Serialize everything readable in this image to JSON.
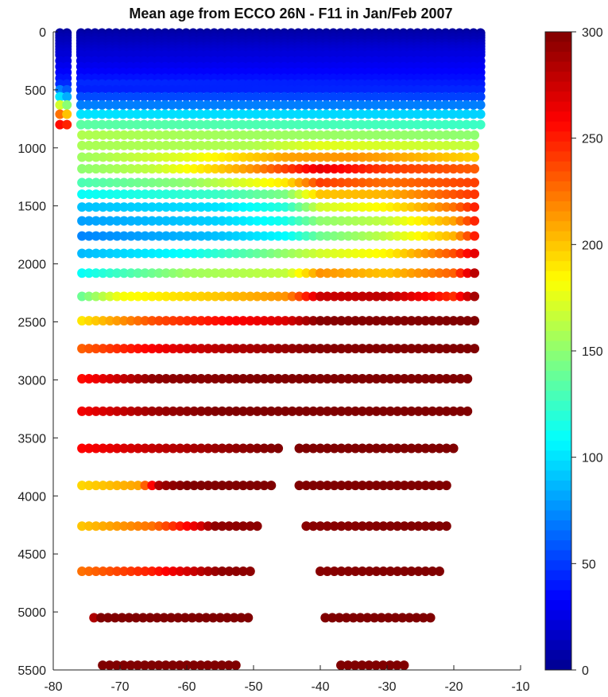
{
  "chart_data": {
    "type": "scatter",
    "title": "Mean age from ECCO 26N - F11 in Jan/Feb 2007",
    "xlabel": "",
    "ylabel": "",
    "xlim": [
      -80,
      -10
    ],
    "ylim": [
      5500,
      0
    ],
    "y_reversed": true,
    "grid": false,
    "x_ticks": [
      -80,
      -70,
      -60,
      -50,
      -40,
      -30,
      -20,
      -10
    ],
    "y_ticks": [
      0,
      500,
      1000,
      1500,
      2000,
      2500,
      3000,
      3500,
      4000,
      4500,
      5000,
      5500
    ],
    "colorbar": {
      "position": "right",
      "colormap": "jet",
      "range": [
        0,
        300
      ],
      "ticks": [
        0,
        50,
        100,
        150,
        200,
        250,
        300
      ]
    },
    "series": [
      {
        "depth": 10,
        "x_range": [
          -79,
          -15
        ],
        "gap": [
          -77.3,
          -76.3
        ],
        "age": [
          [
            -79,
            5
          ],
          [
            -15,
            5
          ]
        ]
      },
      {
        "depth": 30,
        "x_range": [
          -79,
          -15
        ],
        "gap": [
          -77.3,
          -76.3
        ],
        "age": [
          [
            -79,
            8
          ],
          [
            -15,
            8
          ]
        ]
      },
      {
        "depth": 50,
        "x_range": [
          -79,
          -15
        ],
        "gap": [
          -77.3,
          -76.3
        ],
        "age": [
          [
            -79,
            10
          ],
          [
            -15,
            10
          ]
        ]
      },
      {
        "depth": 75,
        "x_range": [
          -79,
          -15
        ],
        "gap": [
          -77.3,
          -76.3
        ],
        "age": [
          [
            -79,
            12
          ],
          [
            -15,
            12
          ]
        ]
      },
      {
        "depth": 100,
        "x_range": [
          -79,
          -15
        ],
        "gap": [
          -77.3,
          -76.3
        ],
        "age": [
          [
            -79,
            13
          ],
          [
            -15,
            15
          ]
        ]
      },
      {
        "depth": 125,
        "x_range": [
          -79,
          -15
        ],
        "gap": [
          -77.3,
          -76.3
        ],
        "age": [
          [
            -79,
            15
          ],
          [
            -15,
            18
          ]
        ]
      },
      {
        "depth": 150,
        "x_range": [
          -79,
          -15
        ],
        "gap": [
          -77.3,
          -76.3
        ],
        "age": [
          [
            -79,
            17
          ],
          [
            -15,
            20
          ]
        ]
      },
      {
        "depth": 175,
        "x_range": [
          -79,
          -15
        ],
        "gap": [
          -77.3,
          -76.3
        ],
        "age": [
          [
            -79,
            19
          ],
          [
            -15,
            22
          ]
        ]
      },
      {
        "depth": 200,
        "x_range": [
          -79,
          -15.2
        ],
        "gap": [
          -77.3,
          -76.3
        ],
        "age": [
          [
            -79,
            21
          ],
          [
            -15.2,
            24
          ]
        ]
      },
      {
        "depth": 250,
        "x_range": [
          -79,
          -15.6
        ],
        "gap": [
          -77.3,
          -76.3
        ],
        "age": [
          [
            -79,
            24
          ],
          [
            -15.6,
            27
          ]
        ]
      },
      {
        "depth": 300,
        "x_range": [
          -79,
          -16
        ],
        "gap": [
          -77.3,
          -76.3
        ],
        "age": [
          [
            -79,
            28
          ],
          [
            -16,
            30
          ]
        ]
      },
      {
        "depth": 350,
        "x_range": [
          -79,
          -16
        ],
        "gap": [
          -77.3,
          -76.3
        ],
        "age": [
          [
            -79,
            32
          ],
          [
            -16,
            33
          ]
        ]
      },
      {
        "depth": 400,
        "x_range": [
          -79,
          -16
        ],
        "gap": [
          -77.3,
          -76.3
        ],
        "age": [
          [
            -79,
            38
          ],
          [
            -16,
            36
          ]
        ]
      },
      {
        "depth": 450,
        "x_range": [
          -79,
          -16
        ],
        "gap": [
          -77.3,
          -76.3
        ],
        "age": [
          [
            -79,
            45
          ],
          [
            -16,
            40
          ]
        ]
      },
      {
        "depth": 500,
        "x_range": [
          -79,
          -16
        ],
        "gap": [
          -77.3,
          -76.3
        ],
        "age": [
          [
            -79,
            70
          ],
          [
            -76,
            42
          ],
          [
            -16,
            44
          ]
        ]
      },
      {
        "depth": 560,
        "x_range": [
          -79,
          -16
        ],
        "gap": [
          -77.3,
          -76.3
        ],
        "age": [
          [
            -79,
            100
          ],
          [
            -76,
            55
          ],
          [
            -16,
            52
          ]
        ]
      },
      {
        "depth": 630,
        "x_range": [
          -79,
          -16
        ],
        "gap": [
          -77.3,
          -76.3
        ],
        "age": [
          [
            -79,
            170
          ],
          [
            -77.5,
            140
          ],
          [
            -76,
            70
          ],
          [
            -16,
            70
          ]
        ]
      },
      {
        "depth": 710,
        "x_range": [
          -79,
          -16
        ],
        "gap": [
          -77.3,
          -76.3
        ],
        "age": [
          [
            -79,
            225
          ],
          [
            -77.5,
            190
          ],
          [
            -76,
            100
          ],
          [
            -16,
            95
          ]
        ]
      },
      {
        "depth": 800,
        "x_range": [
          -79,
          -16
        ],
        "gap": [
          -77.3,
          -76.3
        ],
        "age": [
          [
            -79,
            255
          ],
          [
            -77.5,
            245
          ],
          [
            -76,
            135
          ],
          [
            -16,
            125
          ]
        ]
      },
      {
        "depth": 890,
        "x_range": [
          -75.7,
          -16
        ],
        "age": [
          [
            -75.7,
            160
          ],
          [
            -50,
            155
          ],
          [
            -16,
            150
          ]
        ]
      },
      {
        "depth": 980,
        "x_range": [
          -75.7,
          -16
        ],
        "age": [
          [
            -75.7,
            158
          ],
          [
            -50,
            160
          ],
          [
            -40,
            175
          ],
          [
            -16,
            165
          ]
        ]
      },
      {
        "depth": 1080,
        "x_range": [
          -75.7,
          -16
        ],
        "age": [
          [
            -75.7,
            155
          ],
          [
            -60,
            175
          ],
          [
            -45,
            210
          ],
          [
            -35,
            215
          ],
          [
            -16,
            195
          ]
        ]
      },
      {
        "depth": 1180,
        "x_range": [
          -75.7,
          -16
        ],
        "age": [
          [
            -75.7,
            150
          ],
          [
            -65,
            165
          ],
          [
            -50,
            215
          ],
          [
            -40,
            265
          ],
          [
            -30,
            240
          ],
          [
            -16,
            230
          ]
        ]
      },
      {
        "depth": 1300,
        "x_range": [
          -75.7,
          -16
        ],
        "age": [
          [
            -75.7,
            130
          ],
          [
            -60,
            150
          ],
          [
            -45,
            190
          ],
          [
            -40,
            240
          ],
          [
            -30,
            225
          ],
          [
            -16,
            240
          ]
        ]
      },
      {
        "depth": 1400,
        "x_range": [
          -75.7,
          -16
        ],
        "age": [
          [
            -75.7,
            110
          ],
          [
            -55,
            125
          ],
          [
            -45,
            145
          ],
          [
            -40,
            200
          ],
          [
            -30,
            205
          ],
          [
            -16,
            245
          ]
        ]
      },
      {
        "depth": 1510,
        "x_range": [
          -75.7,
          -16
        ],
        "age": [
          [
            -75.7,
            90
          ],
          [
            -55,
            100
          ],
          [
            -45,
            120
          ],
          [
            -40,
            170
          ],
          [
            -30,
            185
          ],
          [
            -20,
            225
          ],
          [
            -16,
            255
          ]
        ]
      },
      {
        "depth": 1630,
        "x_range": [
          -75.7,
          -16
        ],
        "age": [
          [
            -75.7,
            80
          ],
          [
            -55,
            95
          ],
          [
            -45,
            115
          ],
          [
            -40,
            150
          ],
          [
            -30,
            165
          ],
          [
            -20,
            210
          ],
          [
            -16,
            258
          ]
        ]
      },
      {
        "depth": 1760,
        "x_range": [
          -75.7,
          -16
        ],
        "age": [
          [
            -75.7,
            72
          ],
          [
            -55,
            90
          ],
          [
            -45,
            108
          ],
          [
            -40,
            140
          ],
          [
            -30,
            165
          ],
          [
            -20,
            205
          ],
          [
            -16,
            262
          ]
        ]
      },
      {
        "depth": 1910,
        "x_range": [
          -75.7,
          -16
        ],
        "age": [
          [
            -75.7,
            88
          ],
          [
            -60,
            110
          ],
          [
            -50,
            135
          ],
          [
            -40,
            170
          ],
          [
            -30,
            185
          ],
          [
            -20,
            235
          ],
          [
            -16,
            275
          ]
        ]
      },
      {
        "depth": 2080,
        "x_range": [
          -75.7,
          -16
        ],
        "age": [
          [
            -75.7,
            110
          ],
          [
            -60,
            155
          ],
          [
            -45,
            165
          ],
          [
            -40,
            215
          ],
          [
            -30,
            200
          ],
          [
            -20,
            230
          ],
          [
            -16,
            295
          ]
        ]
      },
      {
        "depth": 2280,
        "x_range": [
          -75.7,
          -16
        ],
        "age": [
          [
            -75.7,
            140
          ],
          [
            -70,
            180
          ],
          [
            -55,
            200
          ],
          [
            -45,
            215
          ],
          [
            -40,
            275
          ],
          [
            -30,
            280
          ],
          [
            -20,
            245
          ],
          [
            -16,
            300
          ]
        ]
      },
      {
        "depth": 2490,
        "x_range": [
          -75.7,
          -16
        ],
        "age": [
          [
            -75.7,
            190
          ],
          [
            -65,
            235
          ],
          [
            -55,
            255
          ],
          [
            -45,
            270
          ],
          [
            -40,
            298
          ],
          [
            -16,
            300
          ]
        ]
      },
      {
        "depth": 2730,
        "x_range": [
          -75.7,
          -16
        ],
        "age": [
          [
            -75.7,
            230
          ],
          [
            -65,
            260
          ],
          [
            -55,
            282
          ],
          [
            -40,
            298
          ],
          [
            -16,
            300
          ]
        ]
      },
      {
        "depth": 2990,
        "x_range": [
          -75.7,
          -17
        ],
        "age": [
          [
            -75.7,
            255
          ],
          [
            -65,
            295
          ],
          [
            -50,
            300
          ],
          [
            -17,
            300
          ]
        ]
      },
      {
        "depth": 3270,
        "x_range": [
          -75.7,
          -17
        ],
        "age": [
          [
            -75.7,
            262
          ],
          [
            -65,
            290
          ],
          [
            -55,
            300
          ],
          [
            -17,
            300
          ]
        ]
      },
      {
        "depth": 3590,
        "x_range": [
          -75.7,
          -19.2
        ],
        "gap": [
          -46,
          -44.2
        ],
        "age": [
          [
            -75.7,
            258
          ],
          [
            -65,
            278
          ],
          [
            -55,
            292
          ],
          [
            -46,
            300
          ],
          [
            -19.2,
            300
          ]
        ]
      },
      {
        "depth": 3910,
        "x_range": [
          -75.7,
          -20.5
        ],
        "gap": [
          -47.2,
          -44.2
        ],
        "age": [
          [
            -75.7,
            195
          ],
          [
            -67,
            210
          ],
          [
            -64,
            290
          ],
          [
            -60,
            300
          ],
          [
            -20.5,
            300
          ]
        ]
      },
      {
        "depth": 4260,
        "x_range": [
          -75.7,
          -20.5
        ],
        "gap": [
          -48.5,
          -42.2
        ],
        "age": [
          [
            -75.7,
            200
          ],
          [
            -65,
            225
          ],
          [
            -58,
            270
          ],
          [
            -56,
            295
          ],
          [
            -20.5,
            300
          ]
        ]
      },
      {
        "depth": 4650,
        "x_range": [
          -75.7,
          -21.7
        ],
        "gap": [
          -49.5,
          -41
        ],
        "age": [
          [
            -75.7,
            225
          ],
          [
            -65,
            250
          ],
          [
            -58,
            280
          ],
          [
            -55,
            295
          ],
          [
            -21.7,
            300
          ]
        ]
      },
      {
        "depth": 5050,
        "x_range": [
          -73.9,
          -23
        ],
        "gap": [
          -50.3,
          -39.3
        ],
        "age": [
          [
            -73.9,
            285
          ],
          [
            -73,
            300
          ],
          [
            -23,
            300
          ]
        ]
      },
      {
        "depth": 5460,
        "x_range": [
          -72.6,
          -27.3
        ],
        "gap": [
          -52.4,
          -37.3
        ],
        "age": [
          [
            -72.6,
            300
          ],
          [
            -27.3,
            300
          ]
        ]
      }
    ]
  }
}
